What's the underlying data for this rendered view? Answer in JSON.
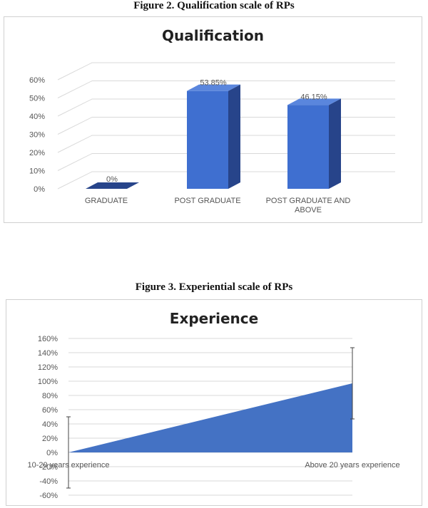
{
  "captions": {
    "figure2": "Figure 2. Qualification scale of RPs",
    "figure3": "Figure 3. Experiential scale of RPs"
  },
  "colors": {
    "bar_front": "#3f6fd0",
    "bar_side": "#27448a",
    "bar_top": "#5a86dd",
    "area_fill": "#4472c4",
    "grid": "#d9d9d9",
    "axis_text": "#555555"
  },
  "chart_data": [
    {
      "type": "bar",
      "title": "Qualification",
      "categories": [
        "GRADUATE",
        "POST GRADUATE",
        "POST GRADUATE AND ABOVE"
      ],
      "category_lines": [
        [
          "GRADUATE"
        ],
        [
          "POST GRADUATE"
        ],
        [
          "POST GRADUATE AND",
          "ABOVE"
        ]
      ],
      "values": [
        0,
        53.85,
        46.15
      ],
      "data_labels": [
        "0%",
        "53.85%",
        "46.15%"
      ],
      "y_ticks": [
        "0%",
        "10%",
        "20%",
        "30%",
        "40%",
        "50%",
        "60%"
      ],
      "ylim": [
        0,
        60
      ],
      "grid": true,
      "style": "3d-column",
      "legend": "none"
    },
    {
      "type": "area",
      "title": "Experience",
      "categories": [
        "10-20 years experience",
        "Above 20 years experience"
      ],
      "values": [
        0,
        97
      ],
      "error_bars": [
        [
          -50,
          50
        ],
        [
          47,
          147
        ]
      ],
      "y_ticks": [
        "-60%",
        "-40%",
        "-20%",
        "0%",
        "20%",
        "40%",
        "60%",
        "80%",
        "100%",
        "120%",
        "140%",
        "160%"
      ],
      "ylim": [
        -60,
        160
      ],
      "grid": true,
      "legend": "none"
    }
  ]
}
